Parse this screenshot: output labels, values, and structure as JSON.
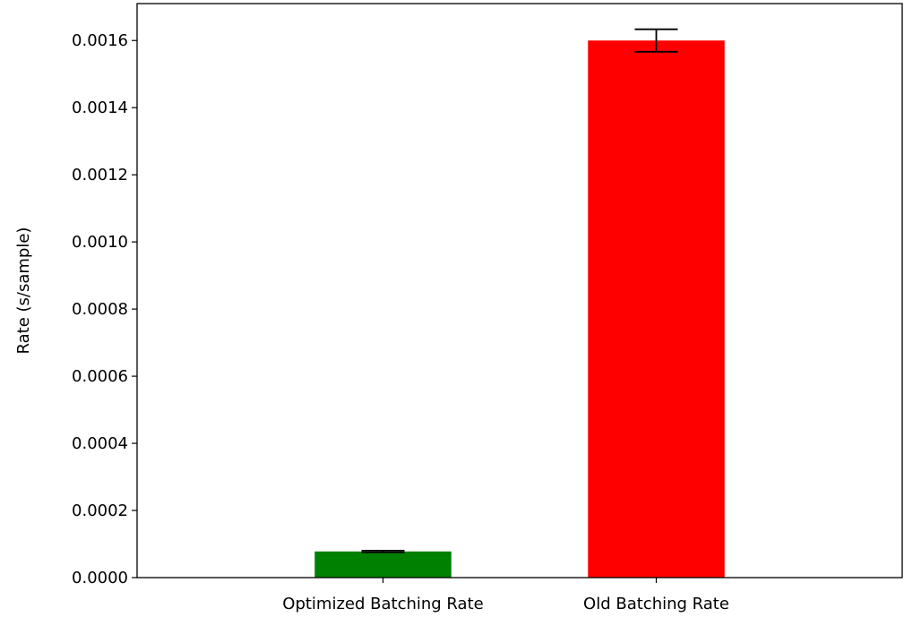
{
  "chart_data": {
    "type": "bar",
    "title": "",
    "xlabel": "",
    "ylabel": "Rate (s/sample)",
    "categories": [
      "Optimized Batching Rate",
      "Old Batching Rate"
    ],
    "values": [
      7.79e-05,
      0.0016
    ],
    "errors": [
      2.5e-06,
      3.35e-05
    ],
    "bar_colors": [
      "#008000",
      "#ff0000"
    ],
    "ylim": [
      0,
      0.00171
    ],
    "yticks": [
      0,
      0.0002,
      0.0004,
      0.0006,
      0.0008,
      0.001,
      0.0012,
      0.0014,
      0.0016
    ],
    "ytick_labels": [
      "0.0000",
      "0.0002",
      "0.0004",
      "0.0006",
      "0.0008",
      "0.0010",
      "0.0012",
      "0.0014",
      "0.0016"
    ],
    "grid": false,
    "legend": "none"
  }
}
